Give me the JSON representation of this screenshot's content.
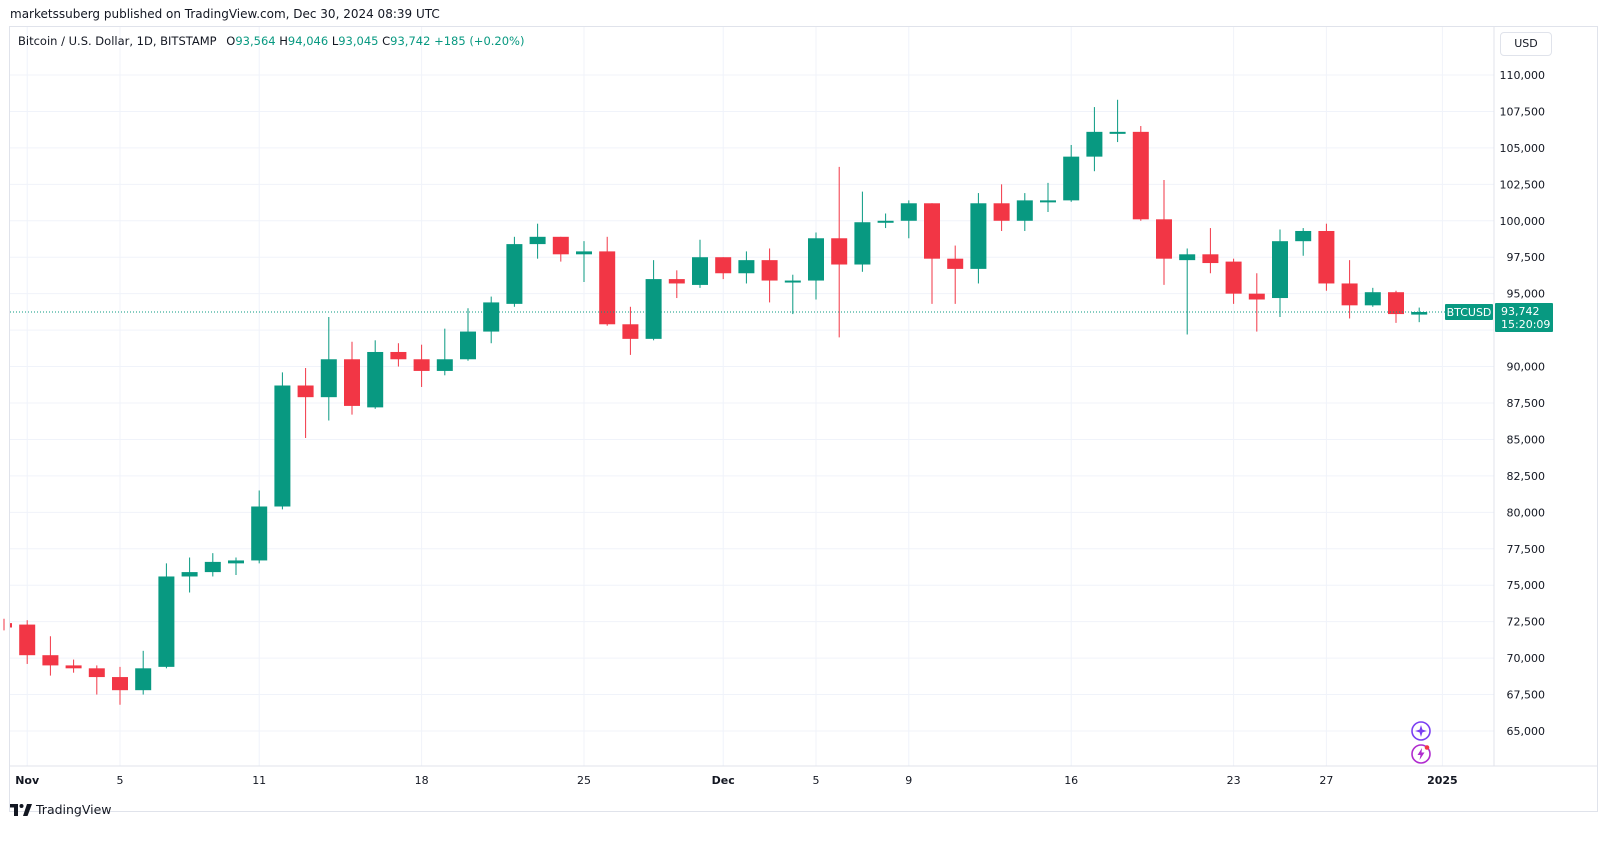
{
  "publisher_line": "marketssuberg published on TradingView.com, Dec 30, 2024 08:39 UTC",
  "legend": {
    "symbol": "Bitcoin / U.S. Dollar, 1D, BITSTAMP",
    "open_label": "O",
    "open": "93,564",
    "high_label": "H",
    "high": "94,046",
    "low_label": "L",
    "low": "93,045",
    "close_label": "C",
    "close": "93,742",
    "change": "+185 (+0.20%)"
  },
  "currency_button": "USD",
  "footer_brand": "TradingView",
  "colors": {
    "up": "#089981",
    "down": "#f23645",
    "grid": "#f0f3fa",
    "text": "#131722"
  },
  "chart_data": {
    "type": "candlestick",
    "title": "Bitcoin / U.S. Dollar, 1D, BITSTAMP",
    "y_axis": {
      "range": [
        63500,
        111500
      ],
      "ticks": [
        65000,
        67500,
        70000,
        72500,
        75000,
        77500,
        80000,
        82500,
        85000,
        87500,
        90000,
        92500,
        95000,
        97500,
        100000,
        102500,
        105000,
        107500,
        110000
      ],
      "tick_labels": [
        "65,000",
        "67,500",
        "70,000",
        "72,500",
        "75,000",
        "77,500",
        "80,000",
        "82,500",
        "85,000",
        "87,500",
        "90,000",
        "",
        "95,000",
        "97,500",
        "100,000",
        "102,500",
        "105,000",
        "107,500",
        "110,000"
      ]
    },
    "x_axis": {
      "labels": [
        {
          "index": 1,
          "text": "Nov"
        },
        {
          "index": 5,
          "text": "5"
        },
        {
          "index": 11,
          "text": "11"
        },
        {
          "index": 18,
          "text": "18"
        },
        {
          "index": 25,
          "text": "25"
        },
        {
          "index": 31,
          "text": "Dec"
        },
        {
          "index": 35,
          "text": "5"
        },
        {
          "index": 39,
          "text": "9"
        },
        {
          "index": 46,
          "text": "16"
        },
        {
          "index": 53,
          "text": "23"
        },
        {
          "index": 57,
          "text": "27"
        },
        {
          "index": 62,
          "text": "2025"
        }
      ]
    },
    "last_price": {
      "symbol": "BTCUSD",
      "price": 93742,
      "price_label": "93,742",
      "countdown": "15:20:09"
    },
    "candles": [
      {
        "date": "Oct 30",
        "o": 72400,
        "h": 72700,
        "l": 71900,
        "c": 72100
      },
      {
        "date": "Oct 31",
        "o": 72300,
        "h": 72600,
        "l": 69600,
        "c": 70200
      },
      {
        "date": "Nov 1",
        "o": 70200,
        "h": 71500,
        "l": 68800,
        "c": 69500
      },
      {
        "date": "Nov 2",
        "o": 69500,
        "h": 69900,
        "l": 69000,
        "c": 69300
      },
      {
        "date": "Nov 3",
        "o": 69300,
        "h": 69500,
        "l": 67500,
        "c": 68700
      },
      {
        "date": "Nov 4",
        "o": 68700,
        "h": 69400,
        "l": 66800,
        "c": 67800
      },
      {
        "date": "Nov 5",
        "o": 67800,
        "h": 70500,
        "l": 67500,
        "c": 69300
      },
      {
        "date": "Nov 6",
        "o": 69400,
        "h": 76500,
        "l": 69300,
        "c": 75600
      },
      {
        "date": "Nov 7",
        "o": 75600,
        "h": 76900,
        "l": 74500,
        "c": 75900
      },
      {
        "date": "Nov 8",
        "o": 75900,
        "h": 77200,
        "l": 75600,
        "c": 76600
      },
      {
        "date": "Nov 9",
        "o": 76500,
        "h": 76900,
        "l": 75700,
        "c": 76700
      },
      {
        "date": "Nov 10",
        "o": 76700,
        "h": 81500,
        "l": 76500,
        "c": 80400
      },
      {
        "date": "Nov 11",
        "o": 80400,
        "h": 89600,
        "l": 80200,
        "c": 88700
      },
      {
        "date": "Nov 12",
        "o": 88700,
        "h": 89900,
        "l": 85100,
        "c": 87900
      },
      {
        "date": "Nov 13",
        "o": 87900,
        "h": 93400,
        "l": 86300,
        "c": 90500
      },
      {
        "date": "Nov 14",
        "o": 90500,
        "h": 91700,
        "l": 86700,
        "c": 87300
      },
      {
        "date": "Nov 15",
        "o": 87200,
        "h": 91800,
        "l": 87100,
        "c": 91000
      },
      {
        "date": "Nov 16",
        "o": 91000,
        "h": 91600,
        "l": 90000,
        "c": 90500
      },
      {
        "date": "Nov 17",
        "o": 90500,
        "h": 91500,
        "l": 88600,
        "c": 89700
      },
      {
        "date": "Nov 18",
        "o": 89700,
        "h": 92600,
        "l": 89400,
        "c": 90500
      },
      {
        "date": "Nov 19",
        "o": 90500,
        "h": 94000,
        "l": 90400,
        "c": 92400
      },
      {
        "date": "Nov 20",
        "o": 92400,
        "h": 94800,
        "l": 91600,
        "c": 94400
      },
      {
        "date": "Nov 21",
        "o": 94300,
        "h": 98900,
        "l": 94100,
        "c": 98400
      },
      {
        "date": "Nov 22",
        "o": 98400,
        "h": 99800,
        "l": 97400,
        "c": 98900
      },
      {
        "date": "Nov 23",
        "o": 98900,
        "h": 98900,
        "l": 97200,
        "c": 97700
      },
      {
        "date": "Nov 24",
        "o": 97700,
        "h": 98600,
        "l": 95800,
        "c": 97900
      },
      {
        "date": "Nov 25",
        "o": 97900,
        "h": 98900,
        "l": 92800,
        "c": 92900
      },
      {
        "date": "Nov 26",
        "o": 92900,
        "h": 94100,
        "l": 90800,
        "c": 91900
      },
      {
        "date": "Nov 27",
        "o": 91900,
        "h": 97300,
        "l": 91800,
        "c": 96000
      },
      {
        "date": "Nov 28",
        "o": 96000,
        "h": 96600,
        "l": 94700,
        "c": 95700
      },
      {
        "date": "Nov 29",
        "o": 95600,
        "h": 98700,
        "l": 95400,
        "c": 97500
      },
      {
        "date": "Nov 30",
        "o": 97500,
        "h": 97500,
        "l": 96000,
        "c": 96400
      },
      {
        "date": "Dec 1",
        "o": 96400,
        "h": 97900,
        "l": 95700,
        "c": 97300
      },
      {
        "date": "Dec 2",
        "o": 97300,
        "h": 98100,
        "l": 94400,
        "c": 95900
      },
      {
        "date": "Dec 3",
        "o": 95800,
        "h": 96300,
        "l": 93600,
        "c": 95900
      },
      {
        "date": "Dec 4",
        "o": 95900,
        "h": 99200,
        "l": 94600,
        "c": 98800
      },
      {
        "date": "Dec 5",
        "o": 98800,
        "h": 103700,
        "l": 92000,
        "c": 97000
      },
      {
        "date": "Dec 6",
        "o": 97000,
        "h": 102000,
        "l": 96500,
        "c": 99900
      },
      {
        "date": "Dec 7",
        "o": 99900,
        "h": 100500,
        "l": 99500,
        "c": 100000
      },
      {
        "date": "Dec 8",
        "o": 100000,
        "h": 101400,
        "l": 98800,
        "c": 101200
      },
      {
        "date": "Dec 9",
        "o": 101200,
        "h": 101200,
        "l": 94300,
        "c": 97400
      },
      {
        "date": "Dec 10",
        "o": 97400,
        "h": 98300,
        "l": 94300,
        "c": 96700
      },
      {
        "date": "Dec 11",
        "o": 96700,
        "h": 101900,
        "l": 95700,
        "c": 101200
      },
      {
        "date": "Dec 12",
        "o": 101200,
        "h": 102500,
        "l": 99300,
        "c": 100000
      },
      {
        "date": "Dec 13",
        "o": 100000,
        "h": 101900,
        "l": 99300,
        "c": 101400
      },
      {
        "date": "Dec 14",
        "o": 101400,
        "h": 102600,
        "l": 100600,
        "c": 101400
      },
      {
        "date": "Dec 15",
        "o": 101400,
        "h": 105200,
        "l": 101300,
        "c": 104400
      },
      {
        "date": "Dec 16",
        "o": 104400,
        "h": 107800,
        "l": 103400,
        "c": 106100
      },
      {
        "date": "Dec 17",
        "o": 106100,
        "h": 108300,
        "l": 105400,
        "c": 106100
      },
      {
        "date": "Dec 18",
        "o": 106100,
        "h": 106500,
        "l": 100000,
        "c": 100100
      },
      {
        "date": "Dec 19",
        "o": 100100,
        "h": 102800,
        "l": 95600,
        "c": 97400
      },
      {
        "date": "Dec 20",
        "o": 97300,
        "h": 98100,
        "l": 92200,
        "c": 97700
      },
      {
        "date": "Dec 21",
        "o": 97700,
        "h": 99500,
        "l": 96400,
        "c": 97100
      },
      {
        "date": "Dec 22",
        "o": 97200,
        "h": 97400,
        "l": 94300,
        "c": 95000
      },
      {
        "date": "Dec 23",
        "o": 95000,
        "h": 96400,
        "l": 92400,
        "c": 94600
      },
      {
        "date": "Dec 24",
        "o": 94700,
        "h": 99400,
        "l": 93400,
        "c": 98600
      },
      {
        "date": "Dec 25",
        "o": 98600,
        "h": 99500,
        "l": 97600,
        "c": 99300
      },
      {
        "date": "Dec 26",
        "o": 99300,
        "h": 99800,
        "l": 95200,
        "c": 95700
      },
      {
        "date": "Dec 27",
        "o": 95700,
        "h": 97300,
        "l": 93300,
        "c": 94200
      },
      {
        "date": "Dec 28",
        "o": 94200,
        "h": 95400,
        "l": 94100,
        "c": 95100
      },
      {
        "date": "Dec 29",
        "o": 95100,
        "h": 95200,
        "l": 93000,
        "c": 93600
      },
      {
        "date": "Dec 30",
        "o": 93564,
        "h": 94046,
        "l": 93045,
        "c": 93742
      }
    ]
  }
}
